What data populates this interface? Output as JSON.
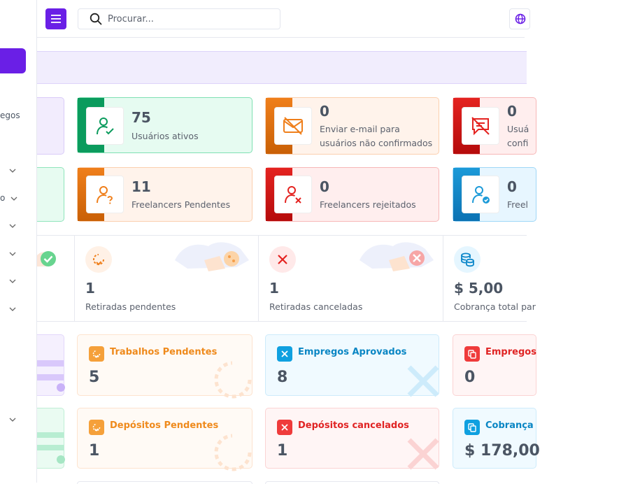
{
  "topbar": {
    "search_placeholder": "Procurar..."
  },
  "sidebar": {
    "partial_item_1": "egos",
    "partial_item_2": "o"
  },
  "widgets": {
    "active_users": {
      "value": "75",
      "label": "Usuários ativos"
    },
    "email_unconfirmed": {
      "value": "0",
      "label": "Enviar e-mail para usuários não confirmados"
    },
    "third_card": {
      "value": "0",
      "label_line1": "Usuá",
      "label_line2": "confi"
    },
    "freelancers_pending": {
      "value": "11",
      "label": "Freelancers Pendentes"
    },
    "freelancers_rejected": {
      "value": "0",
      "label": "Freelancers rejeitados"
    },
    "freelancers_fourth": {
      "value": "0",
      "label": "Freel"
    }
  },
  "middle": {
    "withdraw_pending": {
      "value": "1",
      "label": "Retiradas pendentes"
    },
    "withdraw_cancelled": {
      "value": "1",
      "label": "Retiradas canceladas"
    },
    "charges_total": {
      "value": "$ 5,00",
      "label": "Cobrança total par"
    }
  },
  "bottom": {
    "jobs_pending": {
      "title": "Trabalhos Pendentes",
      "value": "5"
    },
    "jobs_approved": {
      "title": "Empregos Aprovados",
      "value": "8"
    },
    "jobs_third": {
      "title": "Empregos",
      "value": "0"
    },
    "deposits_pending": {
      "title": "Depósitos Pendentes",
      "value": "1"
    },
    "deposits_cancelled": {
      "title": "Depósitos cancelados",
      "value": "1"
    },
    "charges_card": {
      "title": "Cobrança",
      "value": "$ 178,00"
    }
  },
  "colors": {
    "primary": "#6a1fe6",
    "green": "#0b9b5d",
    "orange": "#ef7f1b",
    "red": "#e42320",
    "blue": "#1c9ad8"
  }
}
